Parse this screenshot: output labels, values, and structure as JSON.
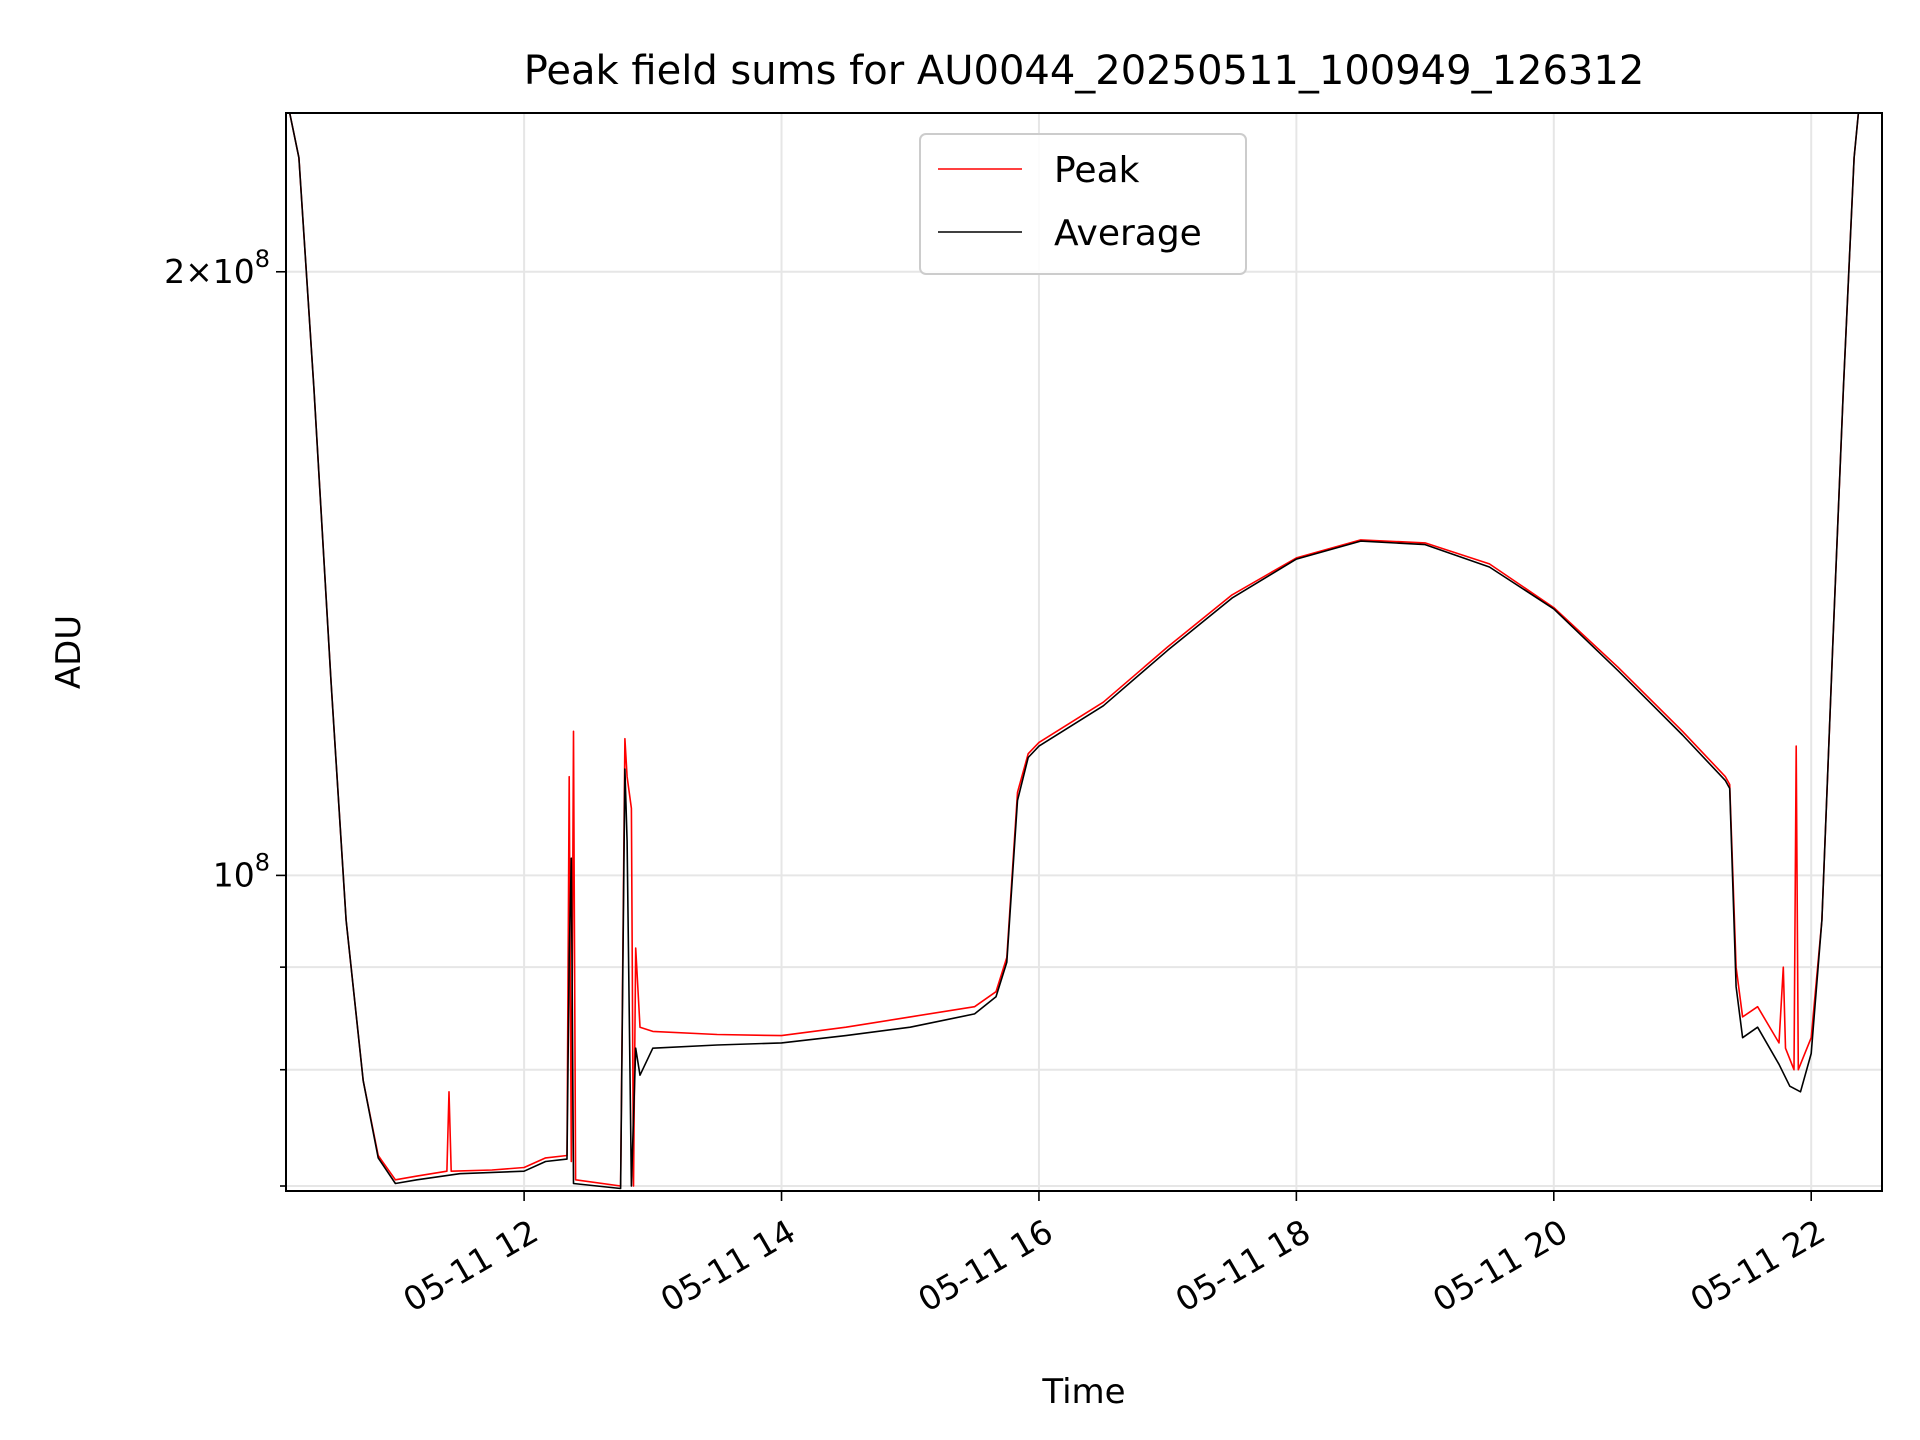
{
  "chart_data": {
    "type": "line",
    "title": "Peak field sums for AU0044_20250511_100949_126312",
    "xlabel": "Time",
    "ylabel": "ADU",
    "y_scale": "log",
    "grid": true,
    "legend_position": "upper center",
    "ylim": [
      69600000,
      240000000
    ],
    "y_ticks": [
      {
        "value": 100000000,
        "label": "10^8",
        "major": true
      },
      {
        "value": 200000000,
        "label": "2×10^8",
        "major": true
      },
      {
        "value": 70000000,
        "label": "",
        "major": false
      },
      {
        "value": 80000000,
        "label": "",
        "major": false
      },
      {
        "value": 90000000,
        "label": "",
        "major": false
      }
    ],
    "xlim": [
      "2025-05-11 10:09",
      "2025-05-11 22:33"
    ],
    "x_ticks": [
      {
        "value": "2025-05-11 12:00",
        "label": "05-11 12"
      },
      {
        "value": "2025-05-11 14:00",
        "label": "05-11 14"
      },
      {
        "value": "2025-05-11 16:00",
        "label": "05-11 16"
      },
      {
        "value": "2025-05-11 18:00",
        "label": "05-11 18"
      },
      {
        "value": "2025-05-11 20:00",
        "label": "05-11 20"
      },
      {
        "value": "2025-05-11 22:00",
        "label": "05-11 22"
      }
    ],
    "series": [
      {
        "name": "Peak",
        "color": "#ff0000",
        "points": [
          [
            "2025-05-11 10:09",
            245000000
          ],
          [
            "2025-05-11 10:15",
            228000000
          ],
          [
            "2025-05-11 10:22",
            175000000
          ],
          [
            "2025-05-11 10:30",
            125000000
          ],
          [
            "2025-05-11 10:37",
            95000000
          ],
          [
            "2025-05-11 10:45",
            79000000
          ],
          [
            "2025-05-11 10:52",
            72500000
          ],
          [
            "2025-05-11 11:00",
            70500000
          ],
          [
            "2025-05-11 11:10",
            70800000
          ],
          [
            "2025-05-11 11:24",
            71200000
          ],
          [
            "2025-05-11 11:25",
            78000000
          ],
          [
            "2025-05-11 11:26",
            71200000
          ],
          [
            "2025-05-11 11:45",
            71300000
          ],
          [
            "2025-05-11 12:00",
            71500000
          ],
          [
            "2025-05-11 12:10",
            72300000
          ],
          [
            "2025-05-11 12:20",
            72500000
          ],
          [
            "2025-05-11 12:21",
            112000000
          ],
          [
            "2025-05-11 12:22",
            72000000
          ],
          [
            "2025-05-11 12:23",
            118000000
          ],
          [
            "2025-05-11 12:24",
            70500000
          ],
          [
            "2025-05-11 12:45",
            70000000
          ],
          [
            "2025-05-11 12:47",
            117000000
          ],
          [
            "2025-05-11 12:48",
            112000000
          ],
          [
            "2025-05-11 12:50",
            108000000
          ],
          [
            "2025-05-11 12:51",
            70000000
          ],
          [
            "2025-05-11 12:52",
            92000000
          ],
          [
            "2025-05-11 12:54",
            84000000
          ],
          [
            "2025-05-11 13:00",
            83600000
          ],
          [
            "2025-05-11 13:30",
            83300000
          ],
          [
            "2025-05-11 14:00",
            83200000
          ],
          [
            "2025-05-11 14:30",
            84000000
          ],
          [
            "2025-05-11 15:00",
            85000000
          ],
          [
            "2025-05-11 15:30",
            86000000
          ],
          [
            "2025-05-11 15:40",
            87500000
          ],
          [
            "2025-05-11 15:45",
            91000000
          ],
          [
            "2025-05-11 15:50",
            110000000
          ],
          [
            "2025-05-11 15:55",
            115000000
          ],
          [
            "2025-05-11 16:00",
            116500000
          ],
          [
            "2025-05-11 16:30",
            122000000
          ],
          [
            "2025-05-11 17:00",
            130000000
          ],
          [
            "2025-05-11 17:30",
            138000000
          ],
          [
            "2025-05-11 18:00",
            144000000
          ],
          [
            "2025-05-11 18:30",
            147000000
          ],
          [
            "2025-05-11 19:00",
            146500000
          ],
          [
            "2025-05-11 19:30",
            143000000
          ],
          [
            "2025-05-11 20:00",
            136000000
          ],
          [
            "2025-05-11 20:30",
            127000000
          ],
          [
            "2025-05-11 21:00",
            118000000
          ],
          [
            "2025-05-11 21:20",
            112000000
          ],
          [
            "2025-05-11 21:22",
            111000000
          ],
          [
            "2025-05-11 21:25",
            90000000
          ],
          [
            "2025-05-11 21:28",
            85000000
          ],
          [
            "2025-05-11 21:35",
            86000000
          ],
          [
            "2025-05-11 21:45",
            82500000
          ],
          [
            "2025-05-11 21:47",
            90000000
          ],
          [
            "2025-05-11 21:48",
            82000000
          ],
          [
            "2025-05-11 21:52",
            80000000
          ],
          [
            "2025-05-11 21:53",
            116000000
          ],
          [
            "2025-05-11 21:54",
            80000000
          ],
          [
            "2025-05-11 22:00",
            83000000
          ],
          [
            "2025-05-11 22:05",
            95000000
          ],
          [
            "2025-05-11 22:10",
            130000000
          ],
          [
            "2025-05-11 22:15",
            175000000
          ],
          [
            "2025-05-11 22:20",
            228000000
          ],
          [
            "2025-05-11 22:22",
            240000000
          ]
        ]
      },
      {
        "name": "Average",
        "color": "#000000",
        "points": [
          [
            "2025-05-11 10:09",
            245000000
          ],
          [
            "2025-05-11 10:15",
            228000000
          ],
          [
            "2025-05-11 10:22",
            175000000
          ],
          [
            "2025-05-11 10:30",
            125000000
          ],
          [
            "2025-05-11 10:37",
            95000000
          ],
          [
            "2025-05-11 10:45",
            79000000
          ],
          [
            "2025-05-11 10:52",
            72300000
          ],
          [
            "2025-05-11 11:00",
            70200000
          ],
          [
            "2025-05-11 11:10",
            70500000
          ],
          [
            "2025-05-11 11:30",
            71000000
          ],
          [
            "2025-05-11 12:00",
            71200000
          ],
          [
            "2025-05-11 12:10",
            72000000
          ],
          [
            "2025-05-11 12:20",
            72200000
          ],
          [
            "2025-05-11 12:21",
            91000000
          ],
          [
            "2025-05-11 12:22",
            102000000
          ],
          [
            "2025-05-11 12:23",
            70200000
          ],
          [
            "2025-05-11 12:45",
            69800000
          ],
          [
            "2025-05-11 12:47",
            113000000
          ],
          [
            "2025-05-11 12:48",
            104000000
          ],
          [
            "2025-05-11 12:50",
            70000000
          ],
          [
            "2025-05-11 12:52",
            82000000
          ],
          [
            "2025-05-11 12:54",
            79500000
          ],
          [
            "2025-05-11 13:00",
            82000000
          ],
          [
            "2025-05-11 13:30",
            82300000
          ],
          [
            "2025-05-11 14:00",
            82500000
          ],
          [
            "2025-05-11 14:30",
            83200000
          ],
          [
            "2025-05-11 15:00",
            84000000
          ],
          [
            "2025-05-11 15:30",
            85300000
          ],
          [
            "2025-05-11 15:40",
            87000000
          ],
          [
            "2025-05-11 15:45",
            90500000
          ],
          [
            "2025-05-11 15:50",
            109000000
          ],
          [
            "2025-05-11 15:55",
            114500000
          ],
          [
            "2025-05-11 16:00",
            116000000
          ],
          [
            "2025-05-11 16:30",
            121500000
          ],
          [
            "2025-05-11 17:00",
            129500000
          ],
          [
            "2025-05-11 17:30",
            137500000
          ],
          [
            "2025-05-11 18:00",
            143800000
          ],
          [
            "2025-05-11 18:30",
            146800000
          ],
          [
            "2025-05-11 19:00",
            146200000
          ],
          [
            "2025-05-11 19:30",
            142500000
          ],
          [
            "2025-05-11 20:00",
            135800000
          ],
          [
            "2025-05-11 20:30",
            126500000
          ],
          [
            "2025-05-11 21:00",
            117500000
          ],
          [
            "2025-05-11 21:20",
            111500000
          ],
          [
            "2025-05-11 21:22",
            110500000
          ],
          [
            "2025-05-11 21:25",
            88000000
          ],
          [
            "2025-05-11 21:28",
            83000000
          ],
          [
            "2025-05-11 21:35",
            84000000
          ],
          [
            "2025-05-11 21:45",
            80500000
          ],
          [
            "2025-05-11 21:50",
            78500000
          ],
          [
            "2025-05-11 21:55",
            78000000
          ],
          [
            "2025-05-11 22:00",
            81500000
          ],
          [
            "2025-05-11 22:05",
            95000000
          ],
          [
            "2025-05-11 22:10",
            130000000
          ],
          [
            "2025-05-11 22:15",
            175000000
          ],
          [
            "2025-05-11 22:20",
            228000000
          ],
          [
            "2025-05-11 22:22",
            240000000
          ]
        ]
      }
    ]
  }
}
